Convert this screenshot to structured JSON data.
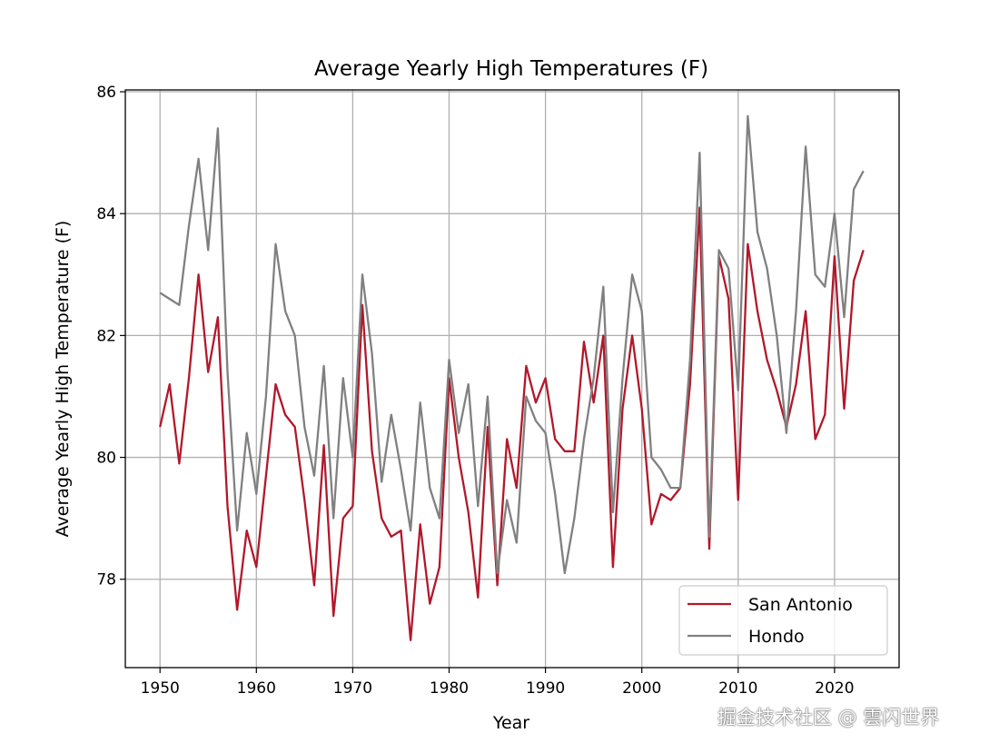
{
  "chart_data": {
    "type": "line",
    "title": "Average Yearly High Temperatures (F)",
    "xlabel": "Year",
    "ylabel": "Average Yearly High Temperature (F)",
    "xlim": [
      1946.4,
      2026.7
    ],
    "ylim": [
      76.55,
      86.03
    ],
    "xticks": [
      1950,
      1960,
      1970,
      1980,
      1990,
      2000,
      2010,
      2020
    ],
    "yticks": [
      78,
      80,
      82,
      84,
      86
    ],
    "grid": true,
    "legend_position": "lower-right",
    "x": [
      1950,
      1951,
      1952,
      1953,
      1954,
      1955,
      1956,
      1957,
      1958,
      1959,
      1960,
      1961,
      1962,
      1963,
      1964,
      1965,
      1966,
      1967,
      1968,
      1969,
      1970,
      1971,
      1972,
      1973,
      1974,
      1975,
      1976,
      1977,
      1978,
      1979,
      1980,
      1981,
      1982,
      1983,
      1984,
      1985,
      1986,
      1987,
      1988,
      1989,
      1990,
      1991,
      1992,
      1993,
      1994,
      1995,
      1996,
      1997,
      1998,
      1999,
      2000,
      2001,
      2002,
      2003,
      2004,
      2005,
      2006,
      2007,
      2008,
      2009,
      2010,
      2011,
      2012,
      2013,
      2014,
      2015,
      2016,
      2017,
      2018,
      2019,
      2020,
      2021,
      2022,
      2023
    ],
    "series": [
      {
        "name": "San Antonio",
        "color": "#b2182b",
        "values": [
          80.5,
          81.2,
          79.9,
          81.3,
          83.0,
          81.4,
          82.3,
          79.2,
          77.5,
          78.8,
          78.2,
          79.7,
          81.2,
          80.7,
          80.5,
          79.3,
          77.9,
          80.2,
          77.4,
          79.0,
          79.2,
          82.5,
          80.1,
          79.0,
          78.7,
          78.8,
          77.0,
          78.9,
          77.6,
          78.2,
          81.3,
          80.0,
          79.1,
          77.7,
          80.5,
          77.9,
          80.3,
          79.5,
          81.5,
          80.9,
          81.3,
          80.3,
          80.1,
          80.1,
          81.9,
          80.9,
          82.0,
          78.2,
          80.8,
          82.0,
          80.8,
          78.9,
          79.4,
          79.3,
          79.5,
          81.2,
          84.1,
          78.5,
          83.3,
          82.6,
          79.3,
          83.5,
          82.4,
          81.6,
          81.1,
          80.5,
          81.2,
          82.4,
          80.3,
          80.7,
          83.3,
          80.8,
          82.9,
          83.4
        ]
      },
      {
        "name": "Hondo",
        "color": "#808080",
        "values": [
          82.7,
          82.6,
          82.5,
          83.8,
          84.9,
          83.4,
          85.4,
          81.4,
          78.8,
          80.4,
          79.4,
          81.0,
          83.5,
          82.4,
          82.0,
          80.5,
          79.7,
          81.5,
          79.0,
          81.3,
          80.0,
          83.0,
          81.7,
          79.6,
          80.7,
          79.8,
          78.8,
          80.9,
          79.5,
          79.0,
          81.6,
          80.4,
          81.2,
          79.2,
          81.0,
          78.1,
          79.3,
          78.6,
          81.0,
          80.6,
          80.4,
          79.4,
          78.1,
          79.0,
          80.3,
          81.3,
          82.8,
          79.1,
          81.3,
          83.0,
          82.4,
          80.0,
          79.8,
          79.5,
          79.5,
          81.6,
          85.0,
          78.7,
          83.4,
          83.1,
          81.1,
          85.6,
          83.7,
          83.1,
          82.0,
          80.4,
          82.4,
          85.1,
          83.0,
          82.8,
          84.0,
          82.3,
          84.4,
          84.7
        ]
      }
    ]
  },
  "watermark": "掘金技术社区 @ 雲闪世界"
}
